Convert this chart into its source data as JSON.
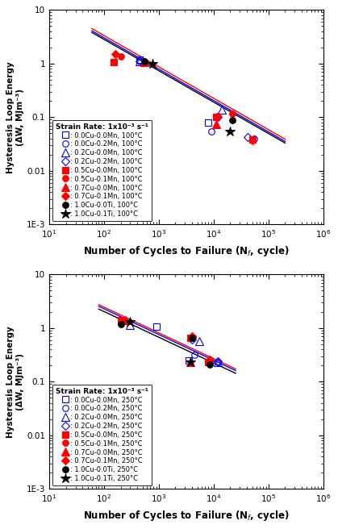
{
  "top": {
    "xlabel": "Number of Cycles to Failure (N$_f$, cycle)",
    "ylabel": "Hysteresis Loop Energy\n(ΔW, MJm⁻³)",
    "legend_title": "Strain Rate: 1x10⁻³ s⁻¹",
    "xlim": [
      10,
      1000000
    ],
    "ylim": [
      0.001,
      10
    ],
    "series": [
      {
        "label": ": 0.0Cu-0.0Mn, 100°C",
        "marker": "s",
        "color": "blue",
        "filled": false,
        "x": [
          450,
          8000,
          50000
        ],
        "y": [
          1.2,
          0.08,
          0.038
        ]
      },
      {
        "label": ": 0.0Cu-0.2Mn, 100°C",
        "marker": "o",
        "color": "blue",
        "filled": false,
        "x": [
          450,
          9000,
          55000
        ],
        "y": [
          1.15,
          0.055,
          0.04
        ]
      },
      {
        "label": ": 0.2Cu-0.0Mn, 100°C",
        "marker": "^",
        "color": "blue",
        "filled": false,
        "x": [
          450,
          14000
        ],
        "y": [
          1.1,
          0.14
        ]
      },
      {
        "label": ": 0.2Cu-0.2Mn, 100°C",
        "marker": "D",
        "color": "blue",
        "filled": false,
        "x": [
          450,
          12000,
          42000
        ],
        "y": [
          1.1,
          0.1,
          0.042
        ]
      },
      {
        "label": ": 0.5Cu-0.0Mn, 100°C",
        "marker": "s",
        "color": "red",
        "filled": true,
        "x": [
          150,
          11000,
          50000
        ],
        "y": [
          1.05,
          0.1,
          0.038
        ]
      },
      {
        "label": ": 0.5Cu-0.1Mn, 100°C",
        "marker": "o",
        "color": "red",
        "filled": true,
        "x": [
          200,
          12000,
          22000
        ],
        "y": [
          1.35,
          0.105,
          0.115
        ]
      },
      {
        "label": ": 0.7Cu-0.0Mn, 100°C",
        "marker": "^",
        "color": "red",
        "filled": true,
        "x": [
          550,
          11000
        ],
        "y": [
          1.05,
          0.075
        ]
      },
      {
        "label": ": 0.7Cu-0.1Mn, 100°C",
        "marker": "D",
        "color": "red",
        "filled": true,
        "x": [
          160,
          50000
        ],
        "y": [
          1.5,
          0.037
        ]
      },
      {
        "label": ": 1.0Cu-0.0Ti, 100°C",
        "marker": "o",
        "color": "black",
        "filled": true,
        "x": [
          550,
          22000
        ],
        "y": [
          1.1,
          0.088
        ]
      },
      {
        "label": ": 1.0Cu-0.1Ti, 100°C",
        "marker": "*",
        "color": "black",
        "filled": true,
        "x": [
          750,
          20000
        ],
        "y": [
          1.0,
          0.055
        ]
      }
    ],
    "fit_lines": [
      {
        "color": "blue",
        "x1": 60,
        "x2": 200000,
        "slope": -0.585,
        "anchor_x": 500,
        "anchor_y": 1.18
      },
      {
        "color": "red",
        "x1": 60,
        "x2": 200000,
        "slope": -0.585,
        "anchor_x": 500,
        "anchor_y": 1.3
      },
      {
        "color": "black",
        "x1": 60,
        "x2": 200000,
        "slope": -0.585,
        "anchor_x": 500,
        "anchor_y": 1.1
      }
    ]
  },
  "bottom": {
    "xlabel": "Number of Cycles to Failure (N$_f$, cycle)",
    "ylabel": "Hysteresis Loop Energy\n(ΔW, MJm⁻³)",
    "legend_title": "Strain Rate: 1x10⁻³ s⁻¹",
    "xlim": [
      10,
      1000000
    ],
    "ylim": [
      0.001,
      10
    ],
    "series": [
      {
        "label": ": 0.0Cu-0.0Mn, 250°C",
        "marker": "s",
        "color": "blue",
        "filled": false,
        "x": [
          900,
          3500
        ],
        "y": [
          1.05,
          0.25
        ]
      },
      {
        "label": ": 0.0Cu-0.2Mn, 250°C",
        "marker": "o",
        "color": "blue",
        "filled": false,
        "x": [
          200,
          4500,
          12000
        ],
        "y": [
          1.3,
          0.32,
          0.23
        ]
      },
      {
        "label": ": 0.2Cu-0.0Mn, 250°C",
        "marker": "^",
        "color": "blue",
        "filled": false,
        "x": [
          300,
          5500,
          12000
        ],
        "y": [
          1.15,
          0.57,
          0.23
        ]
      },
      {
        "label": ": 0.2Cu-0.2Mn, 250°C",
        "marker": "D",
        "color": "blue",
        "filled": false,
        "x": [
          4000,
          12000
        ],
        "y": [
          0.62,
          0.24
        ]
      },
      {
        "label": ": 0.5Cu-0.0Mn, 250°C",
        "marker": "s",
        "color": "red",
        "filled": true,
        "x": [
          200,
          3800,
          8000
        ],
        "y": [
          1.4,
          0.65,
          0.23
        ]
      },
      {
        "label": ": 0.5Cu-0.1Mn, 250°C",
        "marker": "o",
        "color": "red",
        "filled": true,
        "x": [
          220,
          4200,
          8500
        ],
        "y": [
          1.35,
          0.68,
          0.23
        ]
      },
      {
        "label": ": 0.7Cu-0.0Mn, 250°C",
        "marker": "^",
        "color": "red",
        "filled": true,
        "x": [
          250,
          3800
        ],
        "y": [
          1.4,
          0.23
        ]
      },
      {
        "label": ": 0.7Cu-0.1Mn, 250°C",
        "marker": "D",
        "color": "red",
        "filled": true,
        "x": [
          220,
          4000,
          8500
        ],
        "y": [
          1.35,
          0.7,
          0.26
        ]
      },
      {
        "label": ": 1.0Cu-0.0Ti, 250°C",
        "marker": "o",
        "color": "black",
        "filled": true,
        "x": [
          200,
          4000,
          8500
        ],
        "y": [
          1.18,
          0.65,
          0.21
        ]
      },
      {
        "label": ": 1.0Cu-0.1Ti, 250°C",
        "marker": "*",
        "color": "black",
        "filled": true,
        "x": [
          300,
          3800
        ],
        "y": [
          1.3,
          0.23
        ]
      }
    ],
    "fit_lines": [
      {
        "color": "blue",
        "x1": 80,
        "x2": 25000,
        "slope": -0.48,
        "anchor_x": 300,
        "anchor_y": 1.35
      },
      {
        "color": "red",
        "x1": 80,
        "x2": 25000,
        "slope": -0.48,
        "anchor_x": 300,
        "anchor_y": 1.45
      },
      {
        "color": "black",
        "x1": 80,
        "x2": 25000,
        "slope": -0.48,
        "anchor_x": 300,
        "anchor_y": 1.2
      }
    ]
  }
}
